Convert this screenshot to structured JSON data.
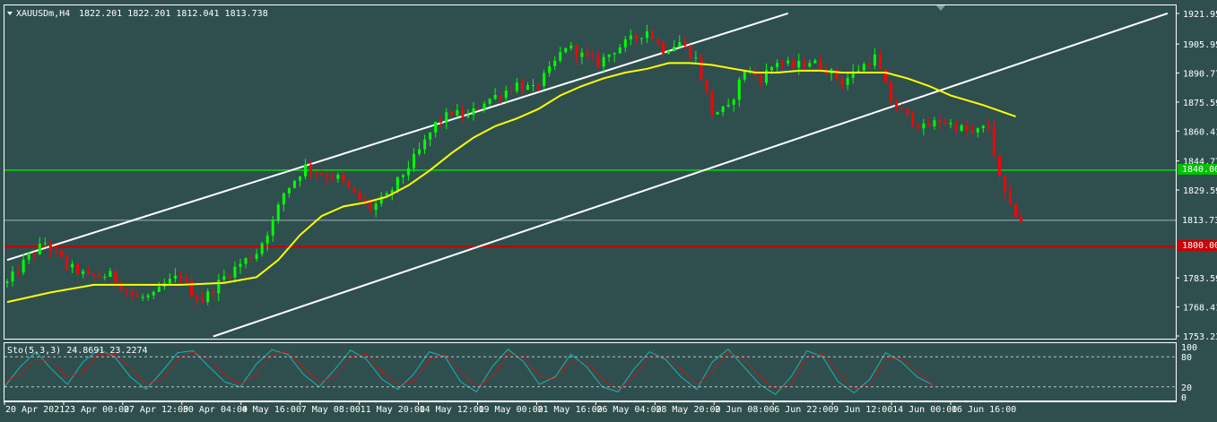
{
  "colors": {
    "background": "#2f4f4f",
    "frame": "#ffffff",
    "bull": "#00ff00",
    "bear": "#ff0000",
    "ma": "#ffff00",
    "channel": "#ffffff",
    "green_level": "#00dd00",
    "red_level": "#cc0000",
    "sto_main": "#20b2aa",
    "sto_signal": "#ff0000"
  },
  "header": {
    "symbol": "XAUUSDm,H4",
    "ohlc": "1822.201 1822.201 1812.041 1813.738"
  },
  "price_axis": {
    "ticks": [
      "1921.950",
      "1905.950",
      "1890.770",
      "1875.590",
      "1860.410",
      "1844.770",
      "1829.590",
      "1783.590",
      "1768.410",
      "1753.230"
    ],
    "tick_values": [
      1921.95,
      1905.95,
      1890.77,
      1875.59,
      1860.41,
      1844.77,
      1829.59,
      1783.59,
      1768.41,
      1753.23
    ],
    "range": [
      1753.23,
      1921.95
    ],
    "current_price_label": "1813.738",
    "level_green_label": "1840.000",
    "level_red_label": "1800.000"
  },
  "oscillator": {
    "label": "Sto(5,3,3) 24.8691 23.2274",
    "levels": [
      "100",
      "80",
      "20",
      "0"
    ],
    "level_values": [
      100,
      80,
      20,
      0
    ]
  },
  "time_axis": {
    "labels": [
      "20 Apr 2021",
      "23 Apr 00:00",
      "27 Apr 12:00",
      "30 Apr 04:00",
      "4 May 16:00",
      "7 May 08:00",
      "11 May 20:00",
      "14 May 12:00",
      "19 May 00:00",
      "21 May 16:00",
      "26 May 04:00",
      "28 May 20:00",
      "2 Jun 08:00",
      "6 Jun 22:00",
      "9 Jun 12:00",
      "14 Jun 00:00",
      "16 Jun 16:00"
    ]
  },
  "chart_data": {
    "type": "candlestick",
    "title": "XAUUSDm,H4",
    "ylim": [
      1753.23,
      1921.95
    ],
    "horizontal_levels": [
      1840.0,
      1800.0,
      1813.738
    ],
    "price_path": [
      [
        0,
        1781
      ],
      [
        4,
        1795
      ],
      [
        7,
        1802
      ],
      [
        11,
        1790
      ],
      [
        15,
        1784
      ],
      [
        19,
        1785
      ],
      [
        22,
        1777
      ],
      [
        24,
        1773
      ],
      [
        27,
        1774
      ],
      [
        29,
        1780
      ],
      [
        32,
        1785
      ],
      [
        34,
        1776
      ],
      [
        36,
        1772
      ],
      [
        40,
        1784
      ],
      [
        43,
        1791
      ],
      [
        46,
        1797
      ],
      [
        49,
        1813
      ],
      [
        51,
        1828
      ],
      [
        53,
        1835
      ],
      [
        55,
        1842
      ],
      [
        58,
        1838
      ],
      [
        61,
        1836
      ],
      [
        64,
        1827
      ],
      [
        67,
        1820
      ],
      [
        70,
        1826
      ],
      [
        73,
        1838
      ],
      [
        76,
        1850
      ],
      [
        79,
        1864
      ],
      [
        82,
        1870
      ],
      [
        85,
        1868
      ],
      [
        88,
        1876
      ],
      [
        91,
        1880
      ],
      [
        94,
        1885
      ],
      [
        97,
        1882
      ],
      [
        100,
        1892
      ],
      [
        103,
        1905
      ],
      [
        106,
        1900
      ],
      [
        109,
        1896
      ],
      [
        112,
        1903
      ],
      [
        115,
        1908
      ],
      [
        118,
        1913
      ],
      [
        121,
        1903
      ],
      [
        124,
        1907
      ],
      [
        127,
        1898
      ],
      [
        130,
        1870
      ],
      [
        133,
        1872
      ],
      [
        136,
        1893
      ],
      [
        139,
        1888
      ],
      [
        142,
        1897
      ],
      [
        145,
        1894
      ],
      [
        148,
        1897
      ],
      [
        151,
        1893
      ],
      [
        154,
        1886
      ],
      [
        157,
        1893
      ],
      [
        160,
        1899
      ],
      [
        163,
        1876
      ],
      [
        166,
        1868
      ],
      [
        169,
        1862
      ],
      [
        172,
        1866
      ],
      [
        175,
        1863
      ],
      [
        178,
        1859
      ],
      [
        181,
        1863
      ],
      [
        183,
        1835
      ],
      [
        185,
        1820
      ],
      [
        187,
        1814
      ]
    ],
    "moving_average": [
      [
        0,
        1771
      ],
      [
        8,
        1776
      ],
      [
        16,
        1780
      ],
      [
        24,
        1780
      ],
      [
        32,
        1780
      ],
      [
        40,
        1781
      ],
      [
        46,
        1784
      ],
      [
        50,
        1793
      ],
      [
        54,
        1806
      ],
      [
        58,
        1816
      ],
      [
        62,
        1821
      ],
      [
        66,
        1823
      ],
      [
        70,
        1826
      ],
      [
        74,
        1832
      ],
      [
        78,
        1840
      ],
      [
        82,
        1849
      ],
      [
        86,
        1857
      ],
      [
        90,
        1863
      ],
      [
        94,
        1867
      ],
      [
        98,
        1872
      ],
      [
        102,
        1879
      ],
      [
        106,
        1884
      ],
      [
        110,
        1888
      ],
      [
        114,
        1891
      ],
      [
        118,
        1893
      ],
      [
        122,
        1896
      ],
      [
        126,
        1896
      ],
      [
        130,
        1895
      ],
      [
        134,
        1893
      ],
      [
        138,
        1891
      ],
      [
        142,
        1891
      ],
      [
        146,
        1892
      ],
      [
        150,
        1892
      ],
      [
        154,
        1891
      ],
      [
        158,
        1891
      ],
      [
        162,
        1891
      ],
      [
        166,
        1888
      ],
      [
        170,
        1884
      ],
      [
        174,
        1879
      ],
      [
        180,
        1874
      ],
      [
        186,
        1868
      ]
    ],
    "channel_lines": [
      {
        "from": [
          0,
          1793
        ],
        "to": [
          144,
          1922
        ]
      },
      {
        "from": [
          38,
          1753
        ],
        "to": [
          214,
          1922
        ]
      }
    ],
    "stochastic": {
      "main": [
        20,
        60,
        90,
        55,
        25,
        70,
        95,
        80,
        40,
        15,
        50,
        88,
        92,
        60,
        30,
        20,
        65,
        94,
        85,
        45,
        20,
        55,
        93,
        75,
        35,
        15,
        45,
        90,
        80,
        30,
        10,
        60,
        95,
        70,
        25,
        40,
        85,
        60,
        20,
        10,
        55,
        90,
        75,
        40,
        15,
        70,
        95,
        60,
        25,
        5,
        40,
        92,
        80,
        30,
        8,
        35,
        88,
        70,
        40,
        24
      ],
      "signal": [
        30,
        45,
        75,
        70,
        40,
        50,
        85,
        85,
        60,
        25,
        35,
        75,
        90,
        75,
        45,
        25,
        45,
        85,
        90,
        60,
        30,
        40,
        80,
        85,
        50,
        25,
        30,
        75,
        85,
        50,
        20,
        40,
        85,
        80,
        40,
        35,
        70,
        70,
        35,
        15,
        40,
        80,
        80,
        55,
        25,
        50,
        90,
        75,
        40,
        15,
        25,
        80,
        85,
        50,
        15,
        25,
        75,
        78,
        50,
        23
      ]
    }
  }
}
